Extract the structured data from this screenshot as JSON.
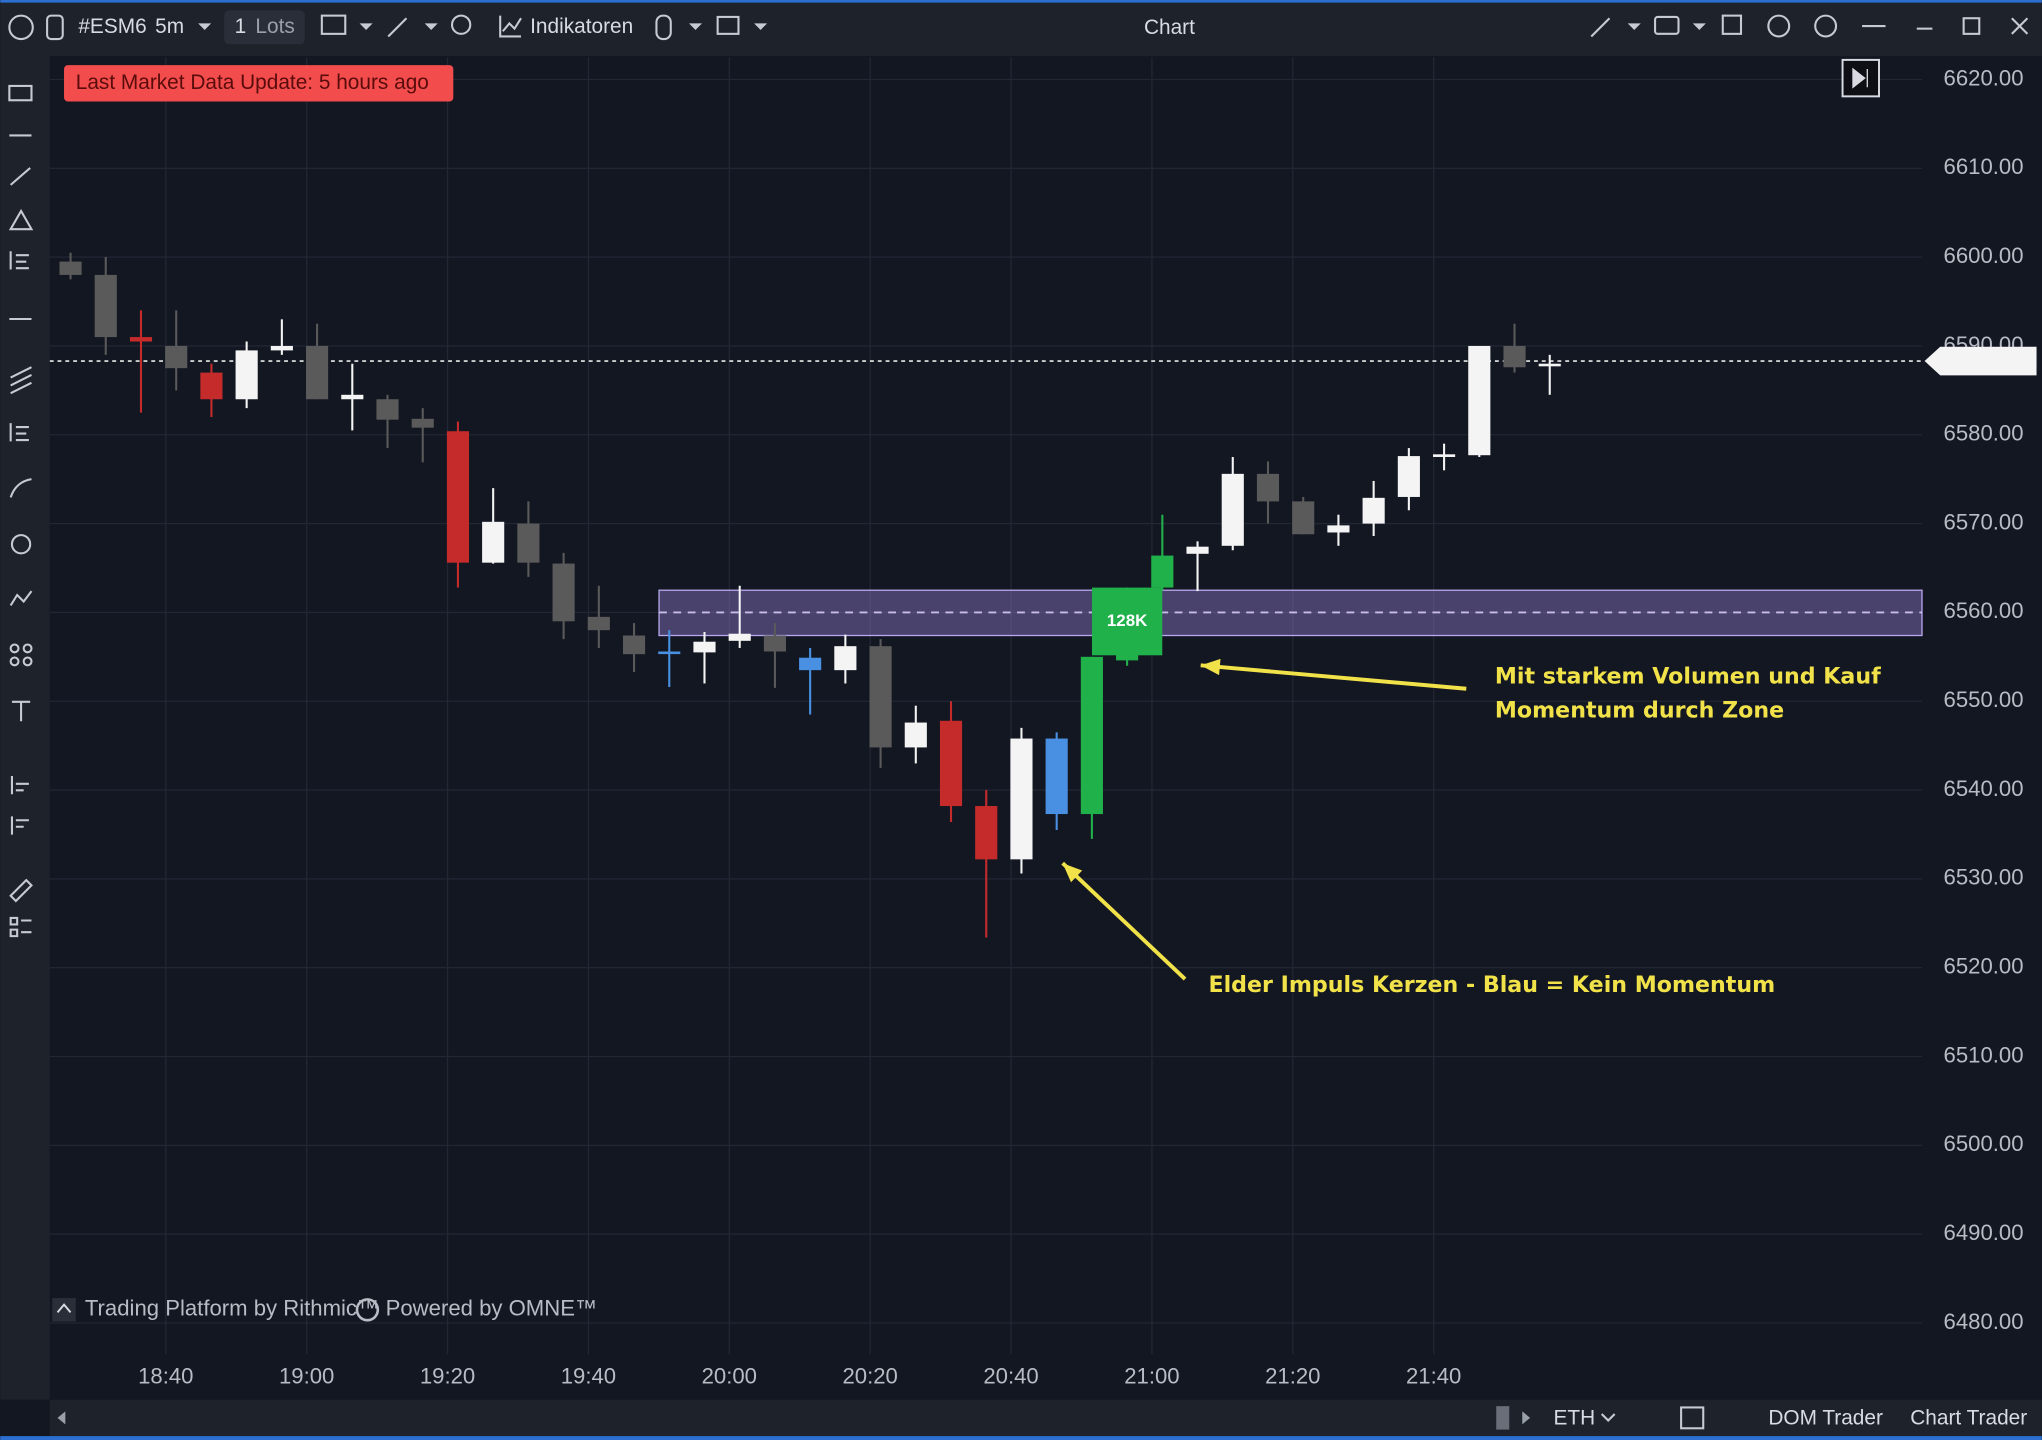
{
  "window": {
    "title": "Chart"
  },
  "toolbar": {
    "symbol": "#ESM6",
    "interval": "5m",
    "lots": "1",
    "lots_unit": "Lots",
    "indicators": "Indikatoren"
  },
  "status": {
    "message": "Last Market Data Update: 5 hours ago"
  },
  "footer": {
    "platform": "Trading Platform by Rithmic™",
    "powered": "Powered by OMNE™"
  },
  "bottom_bar": {
    "session": "ETH",
    "dom": "DOM Trader",
    "chart_trader": "Chart Trader"
  },
  "chart_data": {
    "type": "candlestick",
    "categories": [
      null,
      null,
      null,
      "18:40",
      null,
      null,
      null,
      "19:00",
      null,
      null,
      null,
      "19:20",
      null,
      null,
      null,
      "19:40",
      null,
      null,
      null,
      "20:00",
      null,
      null,
      null,
      "20:20",
      null,
      null,
      null,
      "20:40",
      null,
      null,
      null,
      "21:00",
      null,
      null,
      null,
      "21:20",
      null,
      null,
      null,
      "21:40",
      null,
      null,
      null
    ],
    "series": [
      {
        "open": [
          6599.5,
          6598,
          6591,
          6590,
          6587,
          6584,
          6589.5,
          6590,
          6584.5,
          6584,
          6581.8,
          6580.4,
          6565.6,
          6570,
          6565.5,
          6559.5,
          6557.4,
          6555.6,
          6555.5,
          6556.8,
          6557.4,
          6554.9,
          6553.5,
          6556.2,
          6544.8,
          6547.8,
          6538.2,
          6532.2,
          6537.3,
          6537.3,
          6554.6,
          6562.8,
          6566.6,
          6567.5,
          6575.6,
          6572.5,
          6569,
          6570,
          6573,
          6577.5,
          6577.7,
          6590,
          6588
        ],
        "high": [
          6600.5,
          6600,
          6594,
          6594,
          6588,
          6590.5,
          6593,
          6592.5,
          6588,
          6584.5,
          6583,
          6581.5,
          6574,
          6572.5,
          6566.7,
          6563,
          6558.8,
          6558,
          6557.8,
          6563,
          6558.8,
          6556,
          6557.5,
          6557,
          6549.5,
          6550,
          6540,
          6547,
          6546.5,
          6555,
          6562.8,
          6571,
          6568,
          6577.5,
          6577,
          6573,
          6571,
          6574.8,
          6578.5,
          6579,
          6590,
          6592.5,
          6589
        ],
        "low": [
          6597.5,
          6589,
          6582.5,
          6585,
          6582,
          6583,
          6589,
          6584,
          6580.5,
          6578.5,
          6576.9,
          6562.8,
          6565.5,
          6564,
          6557,
          6556,
          6553.3,
          6551.6,
          6552,
          6556,
          6551.5,
          6548.5,
          6552,
          6542.5,
          6543,
          6536.4,
          6523.4,
          6530.6,
          6535.5,
          6534.5,
          6554,
          6562.5,
          6562.4,
          6567,
          6570,
          6568.8,
          6567.5,
          6568.6,
          6571.5,
          6576,
          6577.5,
          6587,
          6584.5
        ],
        "close": [
          6598,
          6591,
          6590.5,
          6587.5,
          6584,
          6589.5,
          6590,
          6584,
          6584,
          6581.7,
          6580.8,
          6565.6,
          6570.2,
          6565.6,
          6559,
          6558,
          6555.3,
          6555.4,
          6556.7,
          6557.6,
          6555.6,
          6553.5,
          6556.2,
          6544.8,
          6547.6,
          6538.2,
          6532.2,
          6545.8,
          6545.8,
          6555,
          6562.4,
          6566.4,
          6567.4,
          6575.6,
          6572.5,
          6568.8,
          6569.8,
          6572.9,
          6577.6,
          6577.8,
          6590,
          6587.6,
          6588
        ],
        "colors": [
          "#5a5a5a",
          "#5a5a5a",
          "#c62b2b",
          "#5a5a5a",
          "#c62b2b",
          "#f4f4f4",
          "#f4f4f4",
          "#5a5a5a",
          "#f4f4f4",
          "#5a5a5a",
          "#5a5a5a",
          "#c62b2b",
          "#f4f4f4",
          "#5a5a5a",
          "#5a5a5a",
          "#5a5a5a",
          "#5a5a5a",
          "#4a90e2",
          "#f4f4f4",
          "#f4f4f4",
          "#5a5a5a",
          "#4a90e2",
          "#f4f4f4",
          "#5a5a5a",
          "#f4f4f4",
          "#c62b2b",
          "#c62b2b",
          "#f4f4f4",
          "#4a90e2",
          "#21b14b",
          "#21b14b",
          "#21b14b",
          "#f4f4f4",
          "#f4f4f4",
          "#5a5a5a",
          "#5a5a5a",
          "#f4f4f4",
          "#f4f4f4",
          "#f4f4f4",
          "#f4f4f4",
          "#f4f4f4",
          "#5a5a5a",
          "#f4f4f4"
        ]
      }
    ],
    "ylim": [
      6476.5,
      6622.5
    ],
    "yticks": [
      {
        "value": 6620,
        "label": "6620.00"
      },
      {
        "value": 6610,
        "label": "6610.00"
      },
      {
        "value": 6600,
        "label": "6600.00"
      },
      {
        "value": 6590,
        "label": "6590.00"
      },
      {
        "value": 6580,
        "label": "6580.00"
      },
      {
        "value": 6570,
        "label": "6570.00"
      },
      {
        "value": 6560,
        "label": "6560.00"
      },
      {
        "value": 6550,
        "label": "6550.00"
      },
      {
        "value": 6540,
        "label": "6540.00"
      },
      {
        "value": 6530,
        "label": "6530.00"
      },
      {
        "value": 6520,
        "label": "6520.00"
      },
      {
        "value": 6510,
        "label": "6510.00"
      },
      {
        "value": 6500,
        "label": "6500.00"
      },
      {
        "value": 6490,
        "label": "6490.00"
      },
      {
        "value": 6480,
        "label": "6480.00"
      }
    ],
    "grid": true,
    "last_price": 6588.3,
    "zone": [
      6557.4,
      6562.5
    ],
    "zone_mid": 6560,
    "volume_label": "128K",
    "annotations": [
      {
        "lines": [
          "Mit starkem Volumen und Kauf",
          "Momentum durch Zone"
        ]
      },
      {
        "lines": [
          "Elder Impuls Kerzen - Blau = Kein Momentum"
        ]
      }
    ]
  }
}
